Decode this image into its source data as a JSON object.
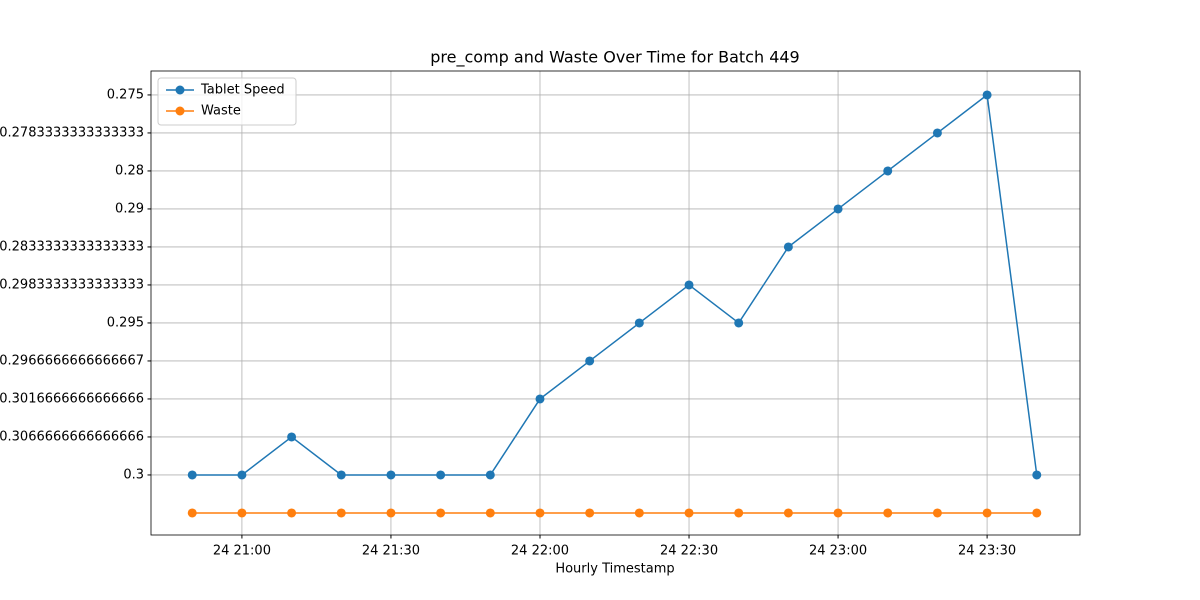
{
  "chart_data": {
    "type": "line",
    "title": "pre_comp and Waste Over Time for Batch 449",
    "x_label": "Hourly Timestamp",
    "x": [
      1250,
      1260,
      1270,
      1280,
      1290,
      1300,
      1310,
      1320,
      1330,
      1340,
      1350,
      1360,
      1370,
      1380,
      1390,
      1400,
      1410,
      1420
    ],
    "series": [
      {
        "name": "Tablet Speed",
        "color": "#1f77b4",
        "values": [
          0,
          0,
          1,
          0,
          0,
          0,
          0,
          2,
          3,
          4,
          5,
          4,
          6,
          7,
          8,
          9,
          10,
          0
        ]
      },
      {
        "name": "Waste",
        "color": "#ff7f0e",
        "values": [
          -1,
          -1,
          -1,
          -1,
          -1,
          -1,
          -1,
          -1,
          -1,
          -1,
          -1,
          -1,
          -1,
          -1,
          -1,
          -1,
          -1,
          -1
        ]
      }
    ],
    "xlim": [
      1241.7,
      1428.7
    ],
    "xticks": [
      {
        "value": 1260,
        "label": "24 21:00"
      },
      {
        "value": 1290,
        "label": "24 21:30"
      },
      {
        "value": 1320,
        "label": "24 22:00"
      },
      {
        "value": 1350,
        "label": "24 22:30"
      },
      {
        "value": 1380,
        "label": "24 23:00"
      },
      {
        "value": 1410,
        "label": "24 23:30"
      }
    ],
    "ylim": [
      -1.58,
      10.63
    ],
    "yticks": [
      {
        "value": 0,
        "label": "0.3"
      },
      {
        "value": 1,
        "label": "0.3066666666666666"
      },
      {
        "value": 2,
        "label": "0.3016666666666666"
      },
      {
        "value": 3,
        "label": "0.2966666666666667"
      },
      {
        "value": 4,
        "label": "0.295"
      },
      {
        "value": 5,
        "label": "0.2983333333333333"
      },
      {
        "value": 6,
        "label": "0.2833333333333333"
      },
      {
        "value": 7,
        "label": "0.29"
      },
      {
        "value": 8,
        "label": "0.28"
      },
      {
        "value": 9,
        "label": "0.2783333333333333"
      },
      {
        "value": 10,
        "label": "0.275"
      }
    ],
    "grid": true,
    "legend": "upper left"
  }
}
